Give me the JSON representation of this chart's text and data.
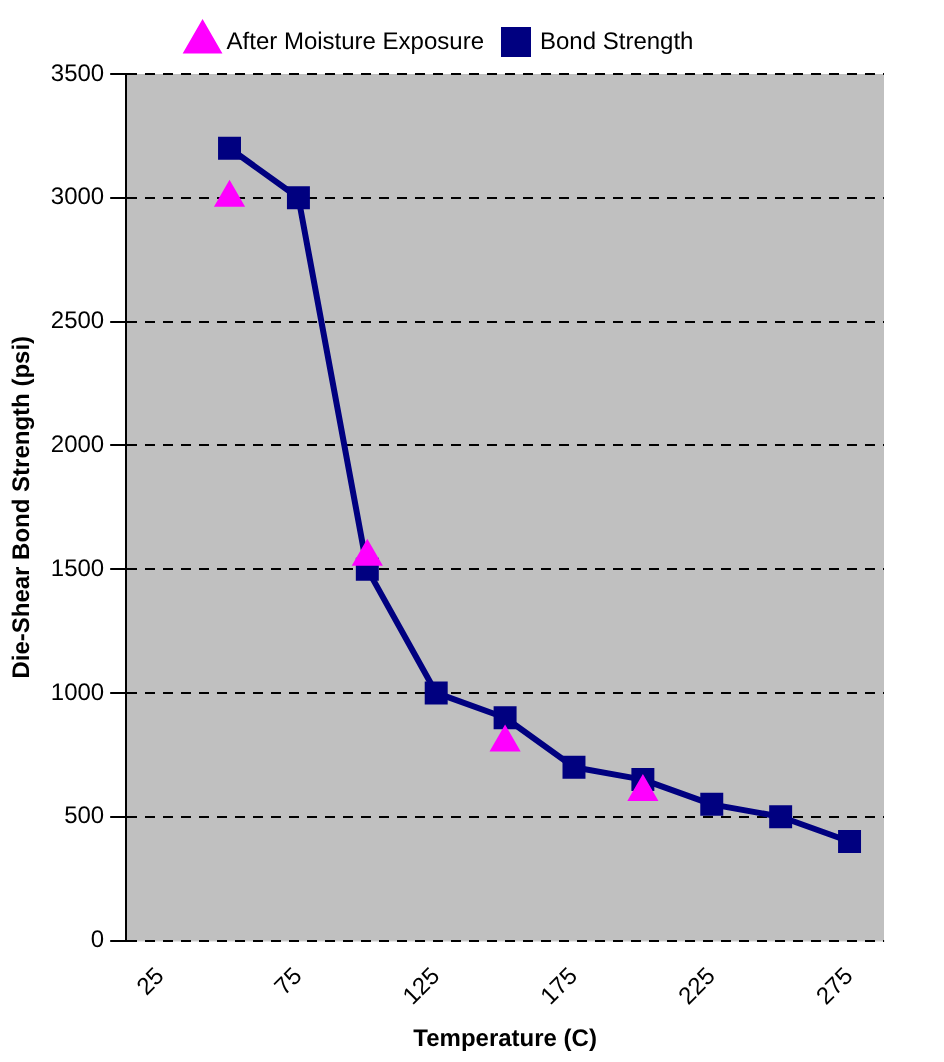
{
  "chart_data": {
    "type": "line",
    "xlabel": "Temperature (C)",
    "ylabel": "Die-Shear Bond Strength (psi)",
    "categories": [
      "25",
      null,
      "75",
      null,
      "125",
      null,
      "175",
      null,
      "225",
      null,
      "275"
    ],
    "series": [
      {
        "name": "Bond Strength",
        "color": "#000080",
        "marker": "square",
        "values": [
          null,
          3200,
          3000,
          1500,
          1000,
          900,
          700,
          650,
          550,
          500,
          400
        ]
      },
      {
        "name": "After Moisture Exposure",
        "type": "scatter",
        "color": "#ff00ff",
        "marker": "triangle",
        "values": [
          null,
          3000,
          null,
          1550,
          null,
          800,
          null,
          600,
          null,
          null,
          null
        ]
      }
    ],
    "ylim": [
      0,
      3500
    ],
    "yticks": [
      0,
      500,
      1000,
      1500,
      2000,
      2500,
      3000,
      3500
    ],
    "grid": "y",
    "legend": "top"
  }
}
